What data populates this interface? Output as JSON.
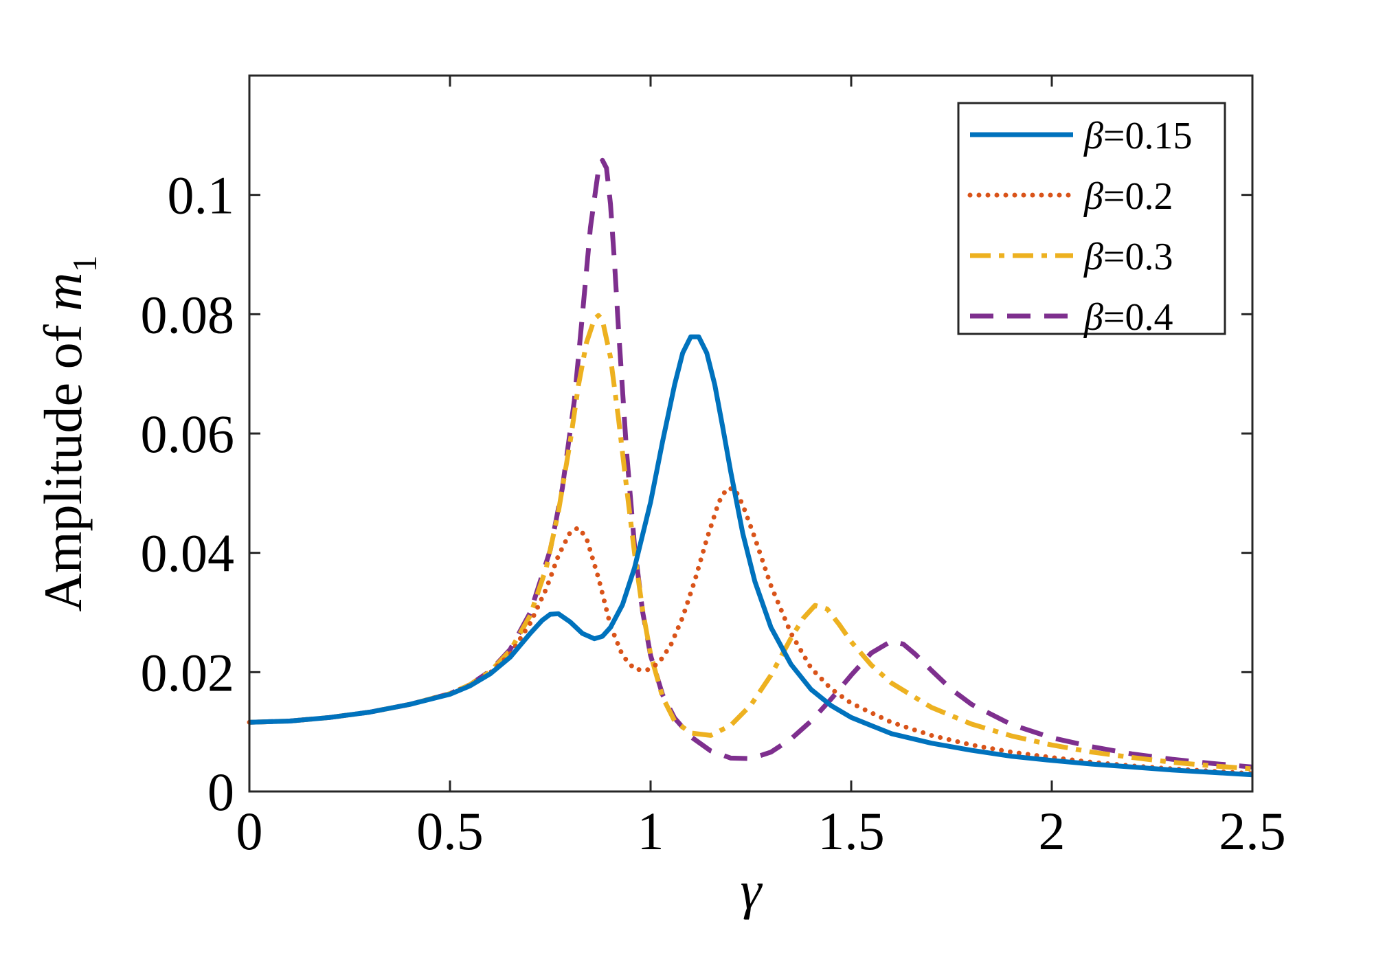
{
  "chart_data": {
    "type": "line",
    "title": "",
    "xlabel": "γ",
    "ylabel_prefix": "Amplitude of ",
    "ylabel_var": "m",
    "ylabel_sub": "1",
    "xlim": [
      0,
      2.5
    ],
    "ylim": [
      0,
      0.12
    ],
    "grid": false,
    "legend_position": "top-right",
    "xticks": [
      {
        "value": 0,
        "label": "0"
      },
      {
        "value": 0.5,
        "label": "0.5"
      },
      {
        "value": 1,
        "label": "1"
      },
      {
        "value": 1.5,
        "label": "1.5"
      },
      {
        "value": 2,
        "label": "2"
      },
      {
        "value": 2.5,
        "label": "2.5"
      }
    ],
    "yticks": [
      {
        "value": 0,
        "label": "0"
      },
      {
        "value": 0.02,
        "label": "0.02"
      },
      {
        "value": 0.04,
        "label": "0.04"
      },
      {
        "value": 0.06,
        "label": "0.06"
      },
      {
        "value": 0.08,
        "label": "0.08"
      },
      {
        "value": 0.1,
        "label": "0.1"
      }
    ],
    "series": [
      {
        "name": "β=0.15",
        "symbol": "β",
        "value_text": "=0.15",
        "color": "#0072BD",
        "dash": "solid",
        "x": [
          0,
          0.1,
          0.2,
          0.3,
          0.4,
          0.5,
          0.55,
          0.6,
          0.65,
          0.7,
          0.73,
          0.75,
          0.77,
          0.8,
          0.83,
          0.86,
          0.88,
          0.9,
          0.93,
          0.96,
          1.0,
          1.03,
          1.06,
          1.08,
          1.1,
          1.12,
          1.14,
          1.16,
          1.18,
          1.2,
          1.23,
          1.26,
          1.3,
          1.35,
          1.4,
          1.45,
          1.5,
          1.6,
          1.7,
          1.8,
          1.9,
          2.0,
          2.1,
          2.2,
          2.3,
          2.4,
          2.5
        ],
        "y": [
          0.0116,
          0.0118,
          0.0124,
          0.0133,
          0.0146,
          0.0163,
          0.0177,
          0.0197,
          0.0225,
          0.0265,
          0.0287,
          0.0297,
          0.0298,
          0.0284,
          0.0265,
          0.0256,
          0.026,
          0.0275,
          0.0313,
          0.0375,
          0.0485,
          0.0587,
          0.0682,
          0.0735,
          0.0762,
          0.0762,
          0.0735,
          0.0682,
          0.061,
          0.0535,
          0.0432,
          0.0352,
          0.0275,
          0.0213,
          0.0171,
          0.0144,
          0.0124,
          0.0097,
          0.0081,
          0.0069,
          0.0059,
          0.0052,
          0.0046,
          0.0041,
          0.0036,
          0.0032,
          0.0028
        ]
      },
      {
        "name": "β=0.2",
        "symbol": "β",
        "value_text": "=0.2",
        "color": "#D95319",
        "dash": "dotted",
        "x": [
          0,
          0.1,
          0.2,
          0.3,
          0.4,
          0.5,
          0.55,
          0.6,
          0.65,
          0.7,
          0.74,
          0.77,
          0.8,
          0.82,
          0.84,
          0.87,
          0.9,
          0.93,
          0.96,
          0.99,
          1.02,
          1.05,
          1.08,
          1.11,
          1.14,
          1.17,
          1.19,
          1.21,
          1.23,
          1.26,
          1.3,
          1.35,
          1.4,
          1.45,
          1.5,
          1.6,
          1.7,
          1.8,
          1.9,
          2.0,
          2.1,
          2.2,
          2.3,
          2.4,
          2.5
        ],
        "y": [
          0.0116,
          0.0118,
          0.0124,
          0.0133,
          0.0146,
          0.0164,
          0.0178,
          0.0199,
          0.023,
          0.0282,
          0.034,
          0.0395,
          0.0435,
          0.0442,
          0.0425,
          0.0358,
          0.0278,
          0.0228,
          0.0205,
          0.0203,
          0.0215,
          0.0245,
          0.0292,
          0.0353,
          0.0423,
          0.0485,
          0.0508,
          0.0507,
          0.048,
          0.0425,
          0.0345,
          0.0265,
          0.0207,
          0.0172,
          0.0148,
          0.0116,
          0.0094,
          0.0078,
          0.0066,
          0.0057,
          0.0049,
          0.0043,
          0.0038,
          0.0034,
          0.003
        ]
      },
      {
        "name": "β=0.3",
        "symbol": "β",
        "value_text": "=0.3",
        "color": "#EDB120",
        "dash": "dashdot",
        "x": [
          0,
          0.1,
          0.2,
          0.3,
          0.4,
          0.5,
          0.55,
          0.6,
          0.65,
          0.7,
          0.74,
          0.77,
          0.8,
          0.82,
          0.84,
          0.86,
          0.87,
          0.88,
          0.9,
          0.92,
          0.94,
          0.96,
          0.98,
          1.0,
          1.03,
          1.06,
          1.1,
          1.15,
          1.2,
          1.25,
          1.3,
          1.35,
          1.38,
          1.41,
          1.44,
          1.47,
          1.5,
          1.55,
          1.6,
          1.7,
          1.8,
          1.9,
          2.0,
          2.1,
          2.2,
          2.3,
          2.4,
          2.5
        ],
        "y": [
          0.0116,
          0.0118,
          0.0124,
          0.0133,
          0.0146,
          0.0164,
          0.0179,
          0.0201,
          0.0236,
          0.0295,
          0.0375,
          0.0468,
          0.0588,
          0.068,
          0.0752,
          0.0792,
          0.0798,
          0.079,
          0.0728,
          0.0625,
          0.051,
          0.04,
          0.0305,
          0.023,
          0.0158,
          0.0118,
          0.0098,
          0.0094,
          0.0111,
          0.0145,
          0.0195,
          0.0257,
          0.029,
          0.0312,
          0.0306,
          0.028,
          0.0251,
          0.0212,
          0.0182,
          0.0141,
          0.0113,
          0.0093,
          0.0078,
          0.0066,
          0.0057,
          0.0049,
          0.0043,
          0.0038
        ]
      },
      {
        "name": "β=0.4",
        "symbol": "β",
        "value_text": "=0.4",
        "color": "#7E2F8E",
        "dash": "dashed",
        "x": [
          0,
          0.1,
          0.2,
          0.3,
          0.4,
          0.5,
          0.55,
          0.6,
          0.65,
          0.7,
          0.75,
          0.78,
          0.81,
          0.83,
          0.85,
          0.87,
          0.88,
          0.89,
          0.9,
          0.91,
          0.92,
          0.94,
          0.96,
          0.98,
          1.0,
          1.03,
          1.06,
          1.1,
          1.15,
          1.2,
          1.25,
          1.3,
          1.35,
          1.4,
          1.45,
          1.5,
          1.55,
          1.6,
          1.63,
          1.66,
          1.7,
          1.75,
          1.8,
          1.9,
          2.0,
          2.1,
          2.2,
          2.3,
          2.4,
          2.5
        ],
        "y": [
          0.0116,
          0.0118,
          0.0124,
          0.0133,
          0.0146,
          0.0164,
          0.0179,
          0.0202,
          0.0238,
          0.03,
          0.0405,
          0.0508,
          0.0655,
          0.0798,
          0.0945,
          0.1042,
          0.1058,
          0.1045,
          0.0985,
          0.0888,
          0.0775,
          0.057,
          0.0412,
          0.0302,
          0.0228,
          0.0162,
          0.0123,
          0.0092,
          0.0068,
          0.0056,
          0.0055,
          0.0066,
          0.0088,
          0.0118,
          0.0155,
          0.0195,
          0.0232,
          0.0252,
          0.0247,
          0.023,
          0.0203,
          0.0171,
          0.0146,
          0.0112,
          0.009,
          0.0075,
          0.0063,
          0.0054,
          0.0047,
          0.0041
        ]
      }
    ]
  }
}
